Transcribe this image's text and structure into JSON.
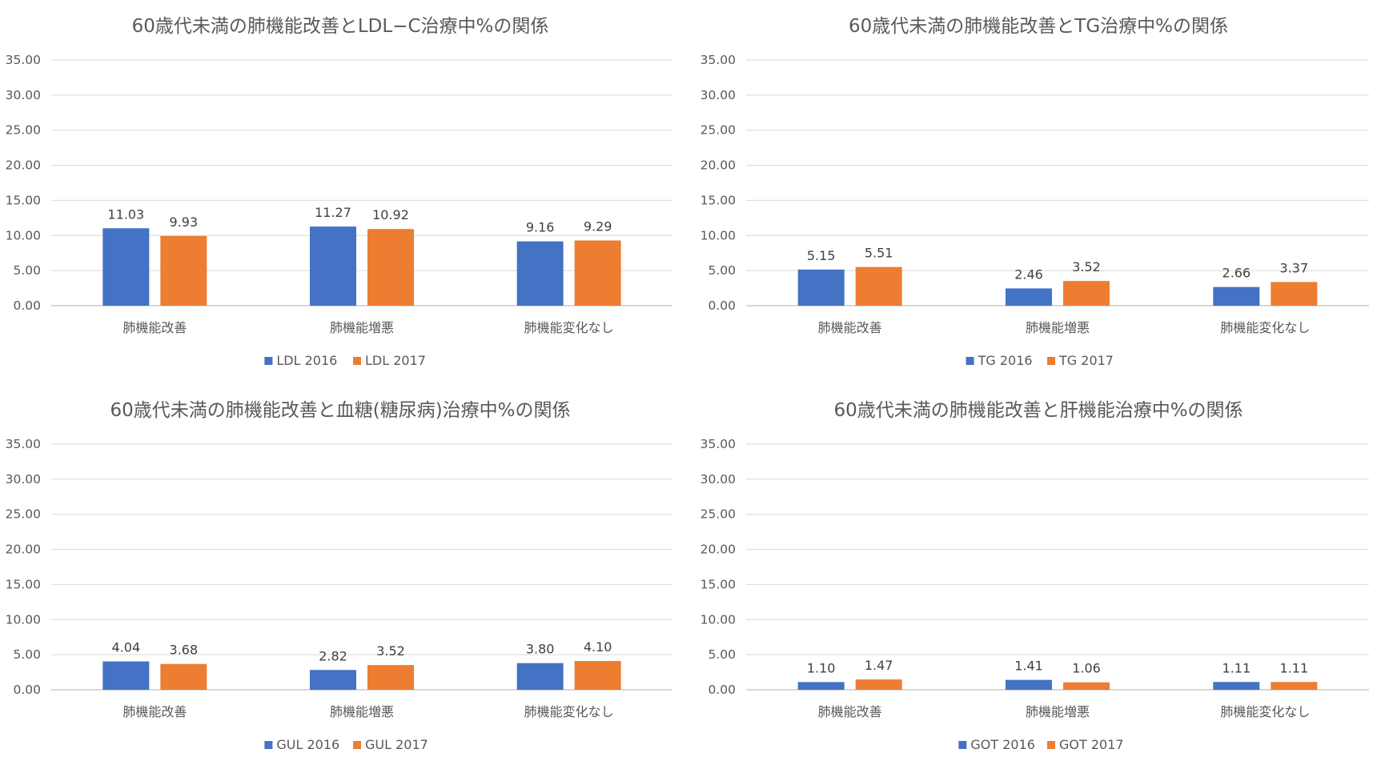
{
  "colors": {
    "series2016": "#4472C4",
    "series2017": "#ED7D31"
  },
  "chart_data": [
    {
      "type": "bar",
      "title": "60歳代未満の肺機能改善とLDL−C治療中%の関係",
      "categories": [
        "肺機能改善",
        "肺機能増悪",
        "肺機能変化なし"
      ],
      "series": [
        {
          "name": "LDL 2016",
          "values": [
            11.03,
            11.27,
            9.16
          ],
          "labels": [
            "11.03",
            "11.27",
            "9.16"
          ]
        },
        {
          "name": "LDL 2017",
          "values": [
            9.93,
            10.92,
            9.29
          ],
          "labels": [
            "9.93",
            "10.92",
            "9.29"
          ]
        }
      ],
      "ylim": [
        0,
        35
      ],
      "yticks": [
        "0.00",
        "5.00",
        "10.00",
        "15.00",
        "20.00",
        "25.00",
        "30.00",
        "35.00"
      ],
      "grid": true,
      "legend": "bottom"
    },
    {
      "type": "bar",
      "title": "60歳代未満の肺機能改善とTG治療中%の関係",
      "categories": [
        "肺機能改善",
        "肺機能増悪",
        "肺機能変化なし"
      ],
      "series": [
        {
          "name": "TG 2016",
          "values": [
            5.15,
            2.46,
            2.66
          ],
          "labels": [
            "5.15",
            "2.46",
            "2.66"
          ]
        },
        {
          "name": "TG 2017",
          "values": [
            5.51,
            3.52,
            3.37
          ],
          "labels": [
            "5.51",
            "3.52",
            "3.37"
          ]
        }
      ],
      "ylim": [
        0,
        35
      ],
      "yticks": [
        "0.00",
        "5.00",
        "10.00",
        "15.00",
        "20.00",
        "25.00",
        "30.00",
        "35.00"
      ],
      "grid": true,
      "legend": "bottom"
    },
    {
      "type": "bar",
      "title": "60歳代未満の肺機能改善と血糖(糖尿病)治療中%の関係",
      "categories": [
        "肺機能改善",
        "肺機能増悪",
        "肺機能変化なし"
      ],
      "series": [
        {
          "name": "GUL 2016",
          "values": [
            4.04,
            2.82,
            3.8
          ],
          "labels": [
            "4.04",
            "2.82",
            "3.80"
          ]
        },
        {
          "name": "GUL 2017",
          "values": [
            3.68,
            3.52,
            4.1
          ],
          "labels": [
            "3.68",
            "3.52",
            "4.10"
          ]
        }
      ],
      "ylim": [
        0,
        35
      ],
      "yticks": [
        "0.00",
        "5.00",
        "10.00",
        "15.00",
        "20.00",
        "25.00",
        "30.00",
        "35.00"
      ],
      "grid": true,
      "legend": "bottom"
    },
    {
      "type": "bar",
      "title": "60歳代未満の肺機能改善と肝機能治療中%の関係",
      "categories": [
        "肺機能改善",
        "肺機能増悪",
        "肺機能変化なし"
      ],
      "series": [
        {
          "name": "GOT 2016",
          "values": [
            1.1,
            1.41,
            1.11
          ],
          "labels": [
            "1.10",
            "1.41",
            "1.11"
          ]
        },
        {
          "name": "GOT 2017",
          "values": [
            1.47,
            1.06,
            1.11
          ],
          "labels": [
            "1.47",
            "1.06",
            "1.11"
          ]
        }
      ],
      "ylim": [
        0,
        35
      ],
      "yticks": [
        "0.00",
        "5.00",
        "10.00",
        "15.00",
        "20.00",
        "25.00",
        "30.00",
        "35.00"
      ],
      "grid": true,
      "legend": "bottom"
    }
  ]
}
